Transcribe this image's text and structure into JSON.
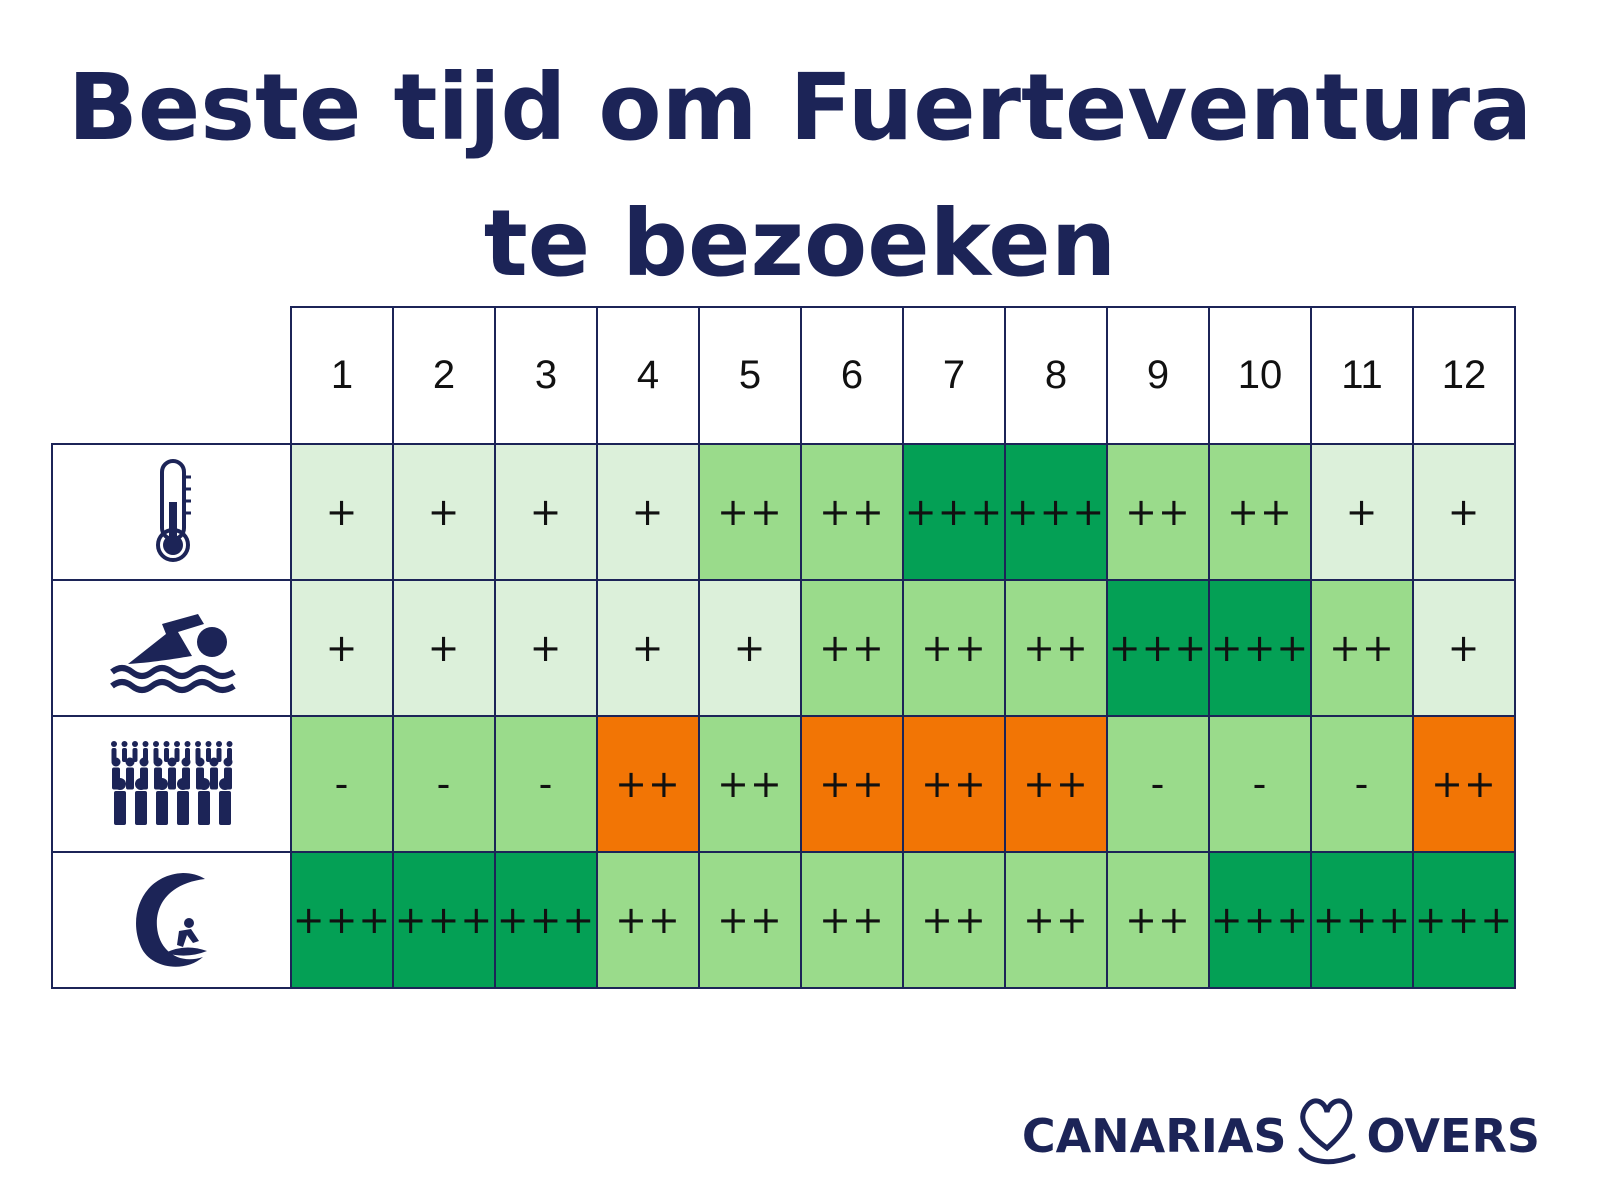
{
  "title_line1": "Beste tijd om Fuerteventura",
  "title_line2": "te bezoeken",
  "logo": {
    "left": "CANARIAS",
    "right": "OVERS",
    "mark": "heart-L-icon"
  },
  "colors": {
    "text": "#1c2457",
    "level1": "#dcf0da",
    "level2": "#9adb8b",
    "level3": "#04a055",
    "orange": "#f27505"
  },
  "chart_data": {
    "type": "table",
    "title": "Beste tijd om Fuerteventura te bezoeken",
    "columns": [
      "1",
      "2",
      "3",
      "4",
      "5",
      "6",
      "7",
      "8",
      "9",
      "10",
      "11",
      "12"
    ],
    "rows": [
      {
        "icon": "thermometer-icon",
        "values": [
          "+",
          "+",
          "+",
          "+",
          "++",
          "++",
          "+++",
          "+++",
          "++",
          "++",
          "+",
          "+"
        ],
        "colors": [
          "level1",
          "level1",
          "level1",
          "level1",
          "level2",
          "level2",
          "level3",
          "level3",
          "level2",
          "level2",
          "level1",
          "level1"
        ]
      },
      {
        "icon": "swimmer-icon",
        "values": [
          "+",
          "+",
          "+",
          "+",
          "+",
          "++",
          "++",
          "++",
          "+++",
          "+++",
          "++",
          "+"
        ],
        "colors": [
          "level1",
          "level1",
          "level1",
          "level1",
          "level1",
          "level2",
          "level2",
          "level2",
          "level3",
          "level3",
          "level2",
          "level1"
        ]
      },
      {
        "icon": "crowd-icon",
        "values": [
          "-",
          "-",
          "-",
          "++",
          "++",
          "++",
          "++",
          "++",
          "-",
          "-",
          "-",
          "++"
        ],
        "colors": [
          "level2",
          "level2",
          "level2",
          "orange",
          "level2",
          "orange",
          "orange",
          "orange",
          "level2",
          "level2",
          "level2",
          "orange"
        ]
      },
      {
        "icon": "surfer-wave-icon",
        "values": [
          "+++",
          "+++",
          "+++",
          "++",
          "++",
          "++",
          "++",
          "++",
          "++",
          "+++",
          "+++",
          "+++"
        ],
        "colors": [
          "level3",
          "level3",
          "level3",
          "level2",
          "level2",
          "level2",
          "level2",
          "level2",
          "level2",
          "level3",
          "level3",
          "level3"
        ]
      }
    ]
  }
}
